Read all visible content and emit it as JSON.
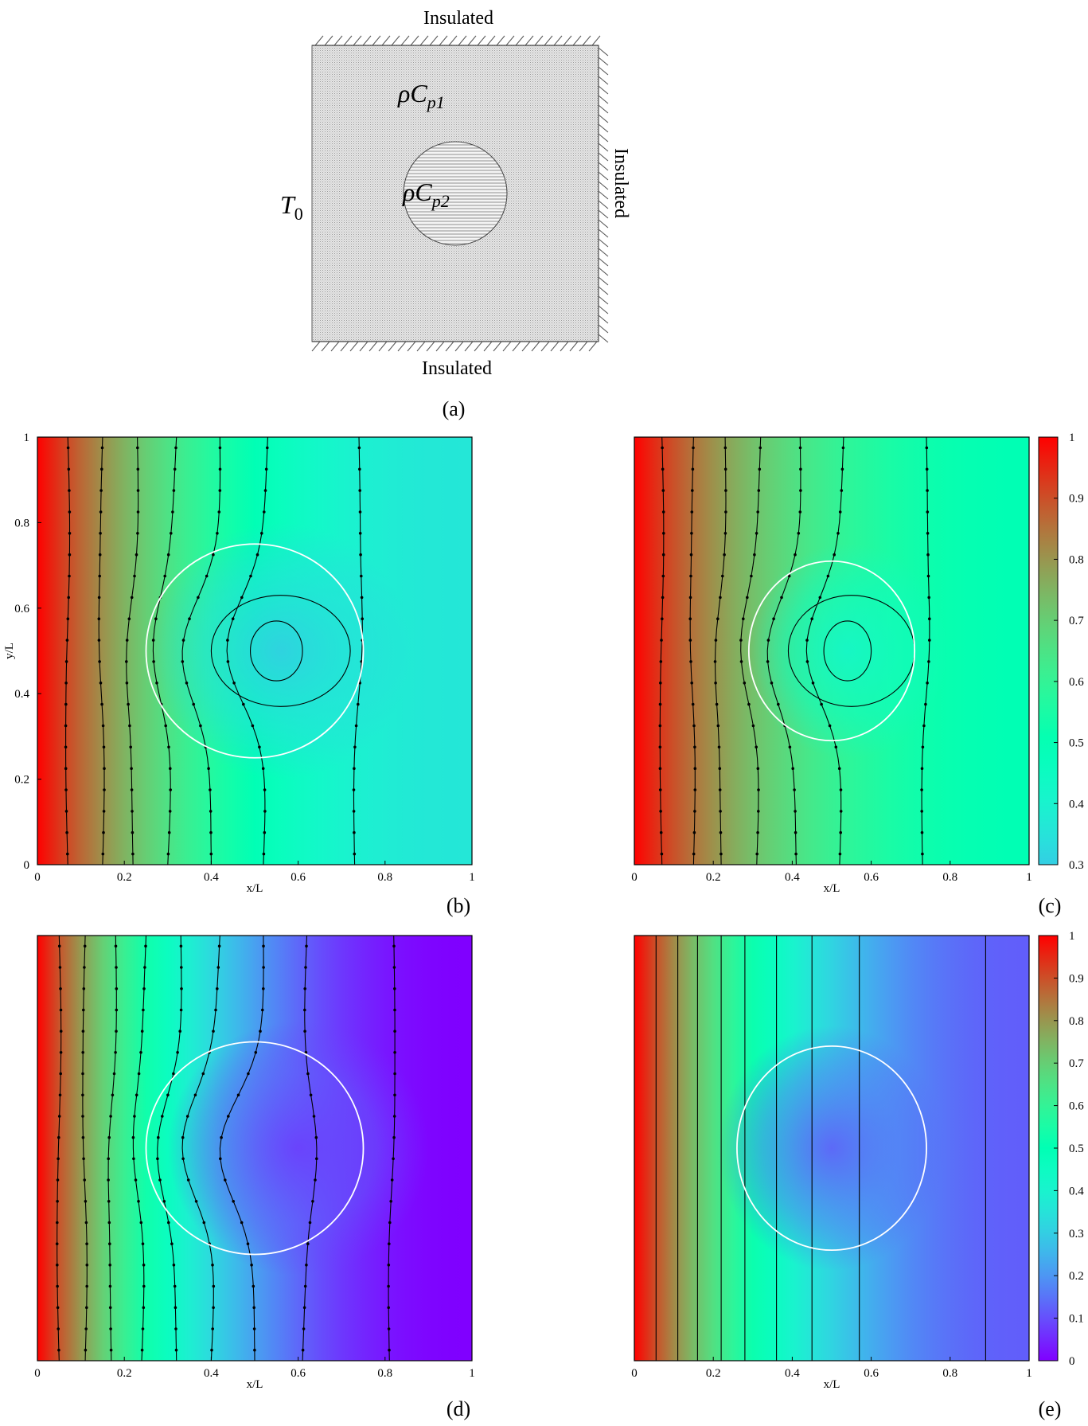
{
  "schematic": {
    "top_label": "Insulated",
    "bottom_label": "Insulated",
    "right_label": "Insulated",
    "left_symbol": "T",
    "left_symbol_sub": "0",
    "outer_symbol": "ρC",
    "outer_symbol_sub": "p1",
    "inner_symbol": "ρC",
    "inner_symbol_sub": "p2",
    "caption": "(a)"
  },
  "chart_data": [
    {
      "panel": "(b)",
      "type": "heatmap",
      "xlabel": "x/L",
      "ylabel": "y/L",
      "xlim": [
        0,
        1
      ],
      "ylim": [
        0,
        1
      ],
      "xticks": [
        "0",
        "0.2",
        "0.4",
        "0.6",
        "0.8",
        "1"
      ],
      "yticks": [
        "0",
        "0.2",
        "0.4",
        "0.6",
        "0.8",
        "1"
      ],
      "circle": {
        "cx": 0.5,
        "cy": 0.5,
        "r": 0.25
      },
      "field": {
        "far": 0.36,
        "inner_min": 0.3,
        "inner_center": [
          0.56,
          0.5
        ]
      },
      "contours_bottom_x": [
        0.07,
        0.15,
        0.22,
        0.3,
        0.4,
        0.52,
        0.73
      ],
      "contours_top_x": [
        0.07,
        0.15,
        0.23,
        0.32,
        0.42,
        0.53,
        0.74
      ],
      "closed_contours": [
        {
          "cx": 0.56,
          "rx": 0.16,
          "ry": 0.13
        },
        {
          "cx": 0.55,
          "rx": 0.06,
          "ry": 0.07
        }
      ]
    },
    {
      "panel": "(c)",
      "type": "heatmap",
      "xlabel": "x/L",
      "ylabel": "",
      "xlim": [
        0,
        1
      ],
      "ylim": [
        0,
        1
      ],
      "xticks": [
        "0",
        "0.2",
        "0.4",
        "0.6",
        "0.8",
        "1"
      ],
      "yticks": [],
      "circle": {
        "cx": 0.5,
        "cy": 0.5,
        "r": 0.21
      },
      "field": {
        "far": 0.5,
        "inner_min": 0.42,
        "inner_center": [
          0.54,
          0.5
        ]
      },
      "contours_bottom_x": [
        0.07,
        0.15,
        0.22,
        0.31,
        0.41,
        0.52,
        0.73
      ],
      "contours_top_x": [
        0.07,
        0.15,
        0.23,
        0.32,
        0.42,
        0.53,
        0.74
      ],
      "closed_contours": [
        {
          "cx": 0.55,
          "rx": 0.16,
          "ry": 0.13
        },
        {
          "cx": 0.54,
          "rx": 0.06,
          "ry": 0.07
        }
      ],
      "colorbar": {
        "min": 0.3,
        "max": 1,
        "ticks": [
          "0.3",
          "0.4",
          "0.5",
          "0.6",
          "0.7",
          "0.8",
          "0.9",
          "1"
        ]
      }
    },
    {
      "panel": "(d)",
      "type": "heatmap",
      "xlabel": "x/L",
      "ylabel": "",
      "xlim": [
        0,
        1
      ],
      "ylim": [
        0,
        1
      ],
      "xticks": [
        "0",
        "0.2",
        "0.4",
        "0.6",
        "0.8",
        "1"
      ],
      "yticks": [],
      "circle": {
        "cx": 0.5,
        "cy": 0.5,
        "r": 0.25
      },
      "field": {
        "far": 0.0,
        "inner_min": 0.08,
        "inner_center": [
          0.6,
          0.5
        ]
      },
      "contours_bottom_x": [
        0.05,
        0.11,
        0.17,
        0.24,
        0.32,
        0.4,
        0.5,
        0.61,
        0.81
      ],
      "contours_top_x": [
        0.05,
        0.11,
        0.18,
        0.25,
        0.33,
        0.42,
        0.52,
        0.62,
        0.82
      ],
      "closed_contours": []
    },
    {
      "panel": "(e)",
      "type": "heatmap",
      "xlabel": "x/L",
      "ylabel": "",
      "xlim": [
        0,
        1
      ],
      "ylim": [
        0,
        1
      ],
      "xticks": [
        "0",
        "0.2",
        "0.4",
        "0.6",
        "0.8",
        "1"
      ],
      "yticks": [],
      "circle": {
        "cx": 0.5,
        "cy": 0.5,
        "r": 0.24
      },
      "field": {
        "far": 0.12,
        "inner_min": 0.12,
        "inner_center": [
          0.5,
          0.5
        ]
      },
      "contours_bottom_x": [
        0.055,
        0.11,
        0.16,
        0.22,
        0.28,
        0.36,
        0.45,
        0.57,
        0.89
      ],
      "contours_top_x": [
        0.055,
        0.11,
        0.16,
        0.22,
        0.28,
        0.36,
        0.45,
        0.57,
        0.89
      ],
      "closed_contours": [],
      "colorbar": {
        "min": 0,
        "max": 1,
        "ticks": [
          "0",
          "0.1",
          "0.2",
          "0.3",
          "0.4",
          "0.5",
          "0.6",
          "0.7",
          "0.8",
          "0.9",
          "1"
        ]
      }
    }
  ],
  "captions": [
    "(b)",
    "(c)",
    "(d)",
    "(e)"
  ]
}
